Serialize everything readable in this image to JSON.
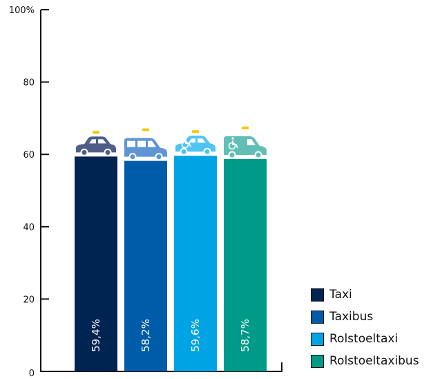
{
  "chart_data": {
    "type": "bar",
    "categories": [
      "Taxi",
      "Taxibus",
      "Rolstoeltaxi",
      "Rolstoeltaxibus"
    ],
    "values": [
      59.4,
      58.2,
      59.6,
      58.7
    ],
    "value_labels": [
      "59,4%",
      "58,2%",
      "59,6%",
      "58,7%"
    ],
    "colors": [
      "#002452",
      "#005ca9",
      "#00a4e4",
      "#009a89"
    ],
    "icon_colors": [
      "#4e5e87",
      "#5f95d4",
      "#4fc4f2",
      "#62bfb6"
    ],
    "icons": [
      "car-icon",
      "van-icon",
      "wheelchair-car-icon",
      "wheelchair-van-icon"
    ],
    "ylim": [
      0,
      100
    ],
    "yticks": [
      0,
      20,
      40,
      60,
      80,
      100
    ],
    "ytick_labels": [
      "0",
      "20",
      "40",
      "60",
      "80",
      "100%"
    ],
    "legend_position": "bottom-right",
    "grid": false
  },
  "legend": [
    {
      "label": "Taxi",
      "color": "#002452"
    },
    {
      "label": "Taxibus",
      "color": "#005ca9"
    },
    {
      "label": "Rolstoeltaxi",
      "color": "#00a4e4"
    },
    {
      "label": "Rolstoeltaxibus",
      "color": "#009a89"
    }
  ]
}
